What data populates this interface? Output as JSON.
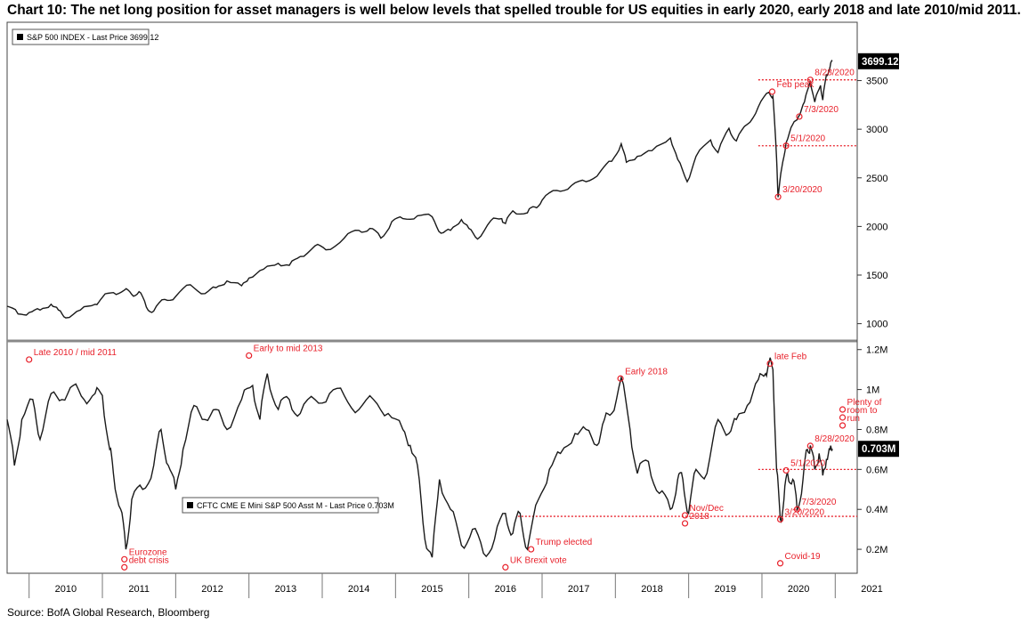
{
  "title": "Chart 10: The net long position for asset managers is well below levels that spelled trouble for US equities in early 2020, early 2018 and late 2010/mid 2011.",
  "source": "Source: BofA Global Research, Bloomberg",
  "colors": {
    "line": "#1a1a1a",
    "annotation": "#e8202a",
    "price_tag": "#000000"
  },
  "chart_data": [
    {
      "type": "line",
      "legend": "S&P 500 INDEX - Last Price 3699.12",
      "legend_position": "top-left",
      "last_price_label": "3699.12",
      "ylim": [
        850,
        4100
      ],
      "yticks": [
        1000,
        1500,
        2000,
        2500,
        3000,
        3500
      ],
      "ytick_labels": [
        "1000",
        "1500",
        "2000",
        "2500",
        "3000",
        "3500"
      ],
      "xlim": [
        2009.7,
        2021.3
      ],
      "series": [
        {
          "values": [
            [
              2009.7,
              1180
            ],
            [
              2009.85,
              1100
            ],
            [
              2010.0,
              1115
            ],
            [
              2010.15,
              1140
            ],
            [
              2010.3,
              1200
            ],
            [
              2010.4,
              1140
            ],
            [
              2010.5,
              1060
            ],
            [
              2010.7,
              1140
            ],
            [
              2010.9,
              1200
            ],
            [
              2011.0,
              1270
            ],
            [
              2011.15,
              1320
            ],
            [
              2011.3,
              1345
            ],
            [
              2011.4,
              1300
            ],
            [
              2011.5,
              1330
            ],
            [
              2011.6,
              1170
            ],
            [
              2011.7,
              1130
            ],
            [
              2011.85,
              1250
            ],
            [
              2012.0,
              1280
            ],
            [
              2012.2,
              1400
            ],
            [
              2012.4,
              1310
            ],
            [
              2012.55,
              1370
            ],
            [
              2012.7,
              1440
            ],
            [
              2012.9,
              1390
            ],
            [
              2013.0,
              1470
            ],
            [
              2013.2,
              1560
            ],
            [
              2013.4,
              1620
            ],
            [
              2013.55,
              1600
            ],
            [
              2013.7,
              1690
            ],
            [
              2013.9,
              1800
            ],
            [
              2014.05,
              1760
            ],
            [
              2014.3,
              1880
            ],
            [
              2014.5,
              1960
            ],
            [
              2014.65,
              1980
            ],
            [
              2014.8,
              1880
            ],
            [
              2014.95,
              2050
            ],
            [
              2015.1,
              2080
            ],
            [
              2015.3,
              2110
            ],
            [
              2015.5,
              2100
            ],
            [
              2015.62,
              1930
            ],
            [
              2015.75,
              1960
            ],
            [
              2015.9,
              2070
            ],
            [
              2016.0,
              1980
            ],
            [
              2016.12,
              1870
            ],
            [
              2016.3,
              2060
            ],
            [
              2016.45,
              2080
            ],
            [
              2016.5,
              2030
            ],
            [
              2016.6,
              2160
            ],
            [
              2016.8,
              2140
            ],
            [
              2016.9,
              2200
            ],
            [
              2017.0,
              2270
            ],
            [
              2017.2,
              2370
            ],
            [
              2017.4,
              2420
            ],
            [
              2017.6,
              2460
            ],
            [
              2017.8,
              2570
            ],
            [
              2017.95,
              2670
            ],
            [
              2018.08,
              2850
            ],
            [
              2018.15,
              2660
            ],
            [
              2018.3,
              2720
            ],
            [
              2018.5,
              2780
            ],
            [
              2018.75,
              2910
            ],
            [
              2018.85,
              2690
            ],
            [
              2018.98,
              2460
            ],
            [
              2019.1,
              2720
            ],
            [
              2019.3,
              2890
            ],
            [
              2019.4,
              2760
            ],
            [
              2019.55,
              3010
            ],
            [
              2019.65,
              2880
            ],
            [
              2019.8,
              3050
            ],
            [
              2019.95,
              3230
            ],
            [
              2020.1,
              3380
            ],
            [
              2020.15,
              3340
            ],
            [
              2020.2,
              2700
            ],
            [
              2020.22,
              2300
            ],
            [
              2020.27,
              2600
            ],
            [
              2020.33,
              2860
            ],
            [
              2020.42,
              3050
            ],
            [
              2020.5,
              3130
            ],
            [
              2020.58,
              3280
            ],
            [
              2020.66,
              3500
            ],
            [
              2020.72,
              3280
            ],
            [
              2020.8,
              3450
            ],
            [
              2020.83,
              3300
            ],
            [
              2020.88,
              3560
            ],
            [
              2020.93,
              3640
            ],
            [
              2020.96,
              3699
            ]
          ]
        }
      ],
      "annotations": [
        {
          "text": "Feb peak",
          "x": 2020.14,
          "y": 3386
        },
        {
          "text": "8/28/2020",
          "x": 2020.66,
          "y": 3508
        },
        {
          "text": "7/3/2020",
          "x": 2020.51,
          "y": 3130
        },
        {
          "text": "5/1/2020",
          "x": 2020.33,
          "y": 2830
        },
        {
          "text": "3/20/2020",
          "x": 2020.22,
          "y": 2304
        }
      ],
      "reference_lines": [
        3508,
        2830
      ]
    },
    {
      "type": "line",
      "legend": "CFTC CME E Mini S&P 500 Asst M - Last Price 0.703M",
      "legend_position": "center-left",
      "last_price_label": "0.703M",
      "ylim": [
        0.08,
        1.23
      ],
      "yticks": [
        0.2,
        0.4,
        0.6,
        0.8,
        1.0,
        1.2
      ],
      "ytick_labels": [
        "0.2M",
        "0.4M",
        "0.6M",
        "0.8M",
        "1M",
        "1.2M"
      ],
      "xlim": [
        2009.7,
        2021.3
      ],
      "x_tick_labels": [
        "2010",
        "2011",
        "2012",
        "2013",
        "2014",
        "2015",
        "2016",
        "2017",
        "2018",
        "2019",
        "2020",
        "2021"
      ],
      "series": [
        {
          "values": [
            [
              2009.7,
              0.85
            ],
            [
              2009.8,
              0.62
            ],
            [
              2009.9,
              0.85
            ],
            [
              2010.05,
              0.95
            ],
            [
              2010.15,
              0.75
            ],
            [
              2010.3,
              0.98
            ],
            [
              2010.45,
              0.95
            ],
            [
              2010.6,
              1.02
            ],
            [
              2010.75,
              0.95
            ],
            [
              2010.9,
              0.98
            ],
            [
              2011.0,
              0.97
            ],
            [
              2011.1,
              0.7
            ],
            [
              2011.15,
              0.58
            ],
            [
              2011.25,
              0.4
            ],
            [
              2011.32,
              0.2
            ],
            [
              2011.4,
              0.45
            ],
            [
              2011.55,
              0.5
            ],
            [
              2011.7,
              0.62
            ],
            [
              2011.8,
              0.8
            ],
            [
              2011.9,
              0.62
            ],
            [
              2012.0,
              0.5
            ],
            [
              2012.1,
              0.7
            ],
            [
              2012.25,
              0.92
            ],
            [
              2012.4,
              0.85
            ],
            [
              2012.55,
              0.9
            ],
            [
              2012.7,
              0.8
            ],
            [
              2012.9,
              0.95
            ],
            [
              2013.05,
              1.02
            ],
            [
              2013.15,
              0.85
            ],
            [
              2013.25,
              1.08
            ],
            [
              2013.4,
              0.9
            ],
            [
              2013.55,
              0.95
            ],
            [
              2013.7,
              0.88
            ],
            [
              2013.9,
              0.95
            ],
            [
              2014.1,
              0.98
            ],
            [
              2014.3,
              0.97
            ],
            [
              2014.5,
              0.9
            ],
            [
              2014.7,
              0.95
            ],
            [
              2014.9,
              0.88
            ],
            [
              2015.1,
              0.8
            ],
            [
              2015.2,
              0.72
            ],
            [
              2015.3,
              0.62
            ],
            [
              2015.4,
              0.25
            ],
            [
              2015.5,
              0.16
            ],
            [
              2015.6,
              0.55
            ],
            [
              2015.75,
              0.4
            ],
            [
              2015.9,
              0.22
            ],
            [
              2016.05,
              0.3
            ],
            [
              2016.2,
              0.18
            ],
            [
              2016.35,
              0.25
            ],
            [
              2016.5,
              0.38
            ],
            [
              2016.6,
              0.28
            ],
            [
              2016.7,
              0.38
            ],
            [
              2016.8,
              0.2
            ],
            [
              2016.95,
              0.45
            ],
            [
              2017.1,
              0.6
            ],
            [
              2017.25,
              0.68
            ],
            [
              2017.45,
              0.78
            ],
            [
              2017.6,
              0.8
            ],
            [
              2017.75,
              0.72
            ],
            [
              2017.85,
              0.85
            ],
            [
              2017.95,
              0.88
            ],
            [
              2018.08,
              1.06
            ],
            [
              2018.2,
              0.8
            ],
            [
              2018.3,
              0.58
            ],
            [
              2018.45,
              0.64
            ],
            [
              2018.6,
              0.48
            ],
            [
              2018.75,
              0.4
            ],
            [
              2018.85,
              0.55
            ],
            [
              2018.92,
              0.55
            ],
            [
              2019.0,
              0.38
            ],
            [
              2019.1,
              0.6
            ],
            [
              2019.25,
              0.58
            ],
            [
              2019.4,
              0.85
            ],
            [
              2019.55,
              0.78
            ],
            [
              2019.65,
              0.85
            ],
            [
              2019.8,
              0.92
            ],
            [
              2019.95,
              1.05
            ],
            [
              2020.05,
              1.08
            ],
            [
              2020.1,
              1.14
            ],
            [
              2020.15,
              1.1
            ],
            [
              2020.2,
              0.6
            ],
            [
              2020.25,
              0.35
            ],
            [
              2020.3,
              0.45
            ],
            [
              2020.35,
              0.58
            ],
            [
              2020.42,
              0.55
            ],
            [
              2020.48,
              0.4
            ],
            [
              2020.56,
              0.55
            ],
            [
              2020.62,
              0.7
            ],
            [
              2020.66,
              0.72
            ],
            [
              2020.72,
              0.6
            ],
            [
              2020.78,
              0.68
            ],
            [
              2020.83,
              0.57
            ],
            [
              2020.88,
              0.65
            ],
            [
              2020.93,
              0.7
            ],
            [
              2020.96,
              0.703
            ]
          ]
        }
      ],
      "annotations": [
        {
          "text": "Late 2010 / mid 2011",
          "x": 2010.0,
          "y": 1.15
        },
        {
          "text": "Early to mid 2013",
          "x": 2013.0,
          "y": 1.17
        },
        {
          "text": "Eurozone",
          "x": 2011.3,
          "y": 0.15
        },
        {
          "text": "debt crisis",
          "x": 2011.3,
          "y": 0.11
        },
        {
          "text": "UK Brexit vote",
          "x": 2016.5,
          "y": 0.11
        },
        {
          "text": "Trump elected",
          "x": 2016.85,
          "y": 0.2
        },
        {
          "text": "Early 2018",
          "x": 2018.07,
          "y": 1.055
        },
        {
          "text": "late Feb",
          "x": 2020.11,
          "y": 1.13
        },
        {
          "text": "Nov/Dec",
          "x": 2018.95,
          "y": 0.37
        },
        {
          "text": "2018",
          "x": 2018.95,
          "y": 0.33
        },
        {
          "text": "3/20/2020",
          "x": 2020.25,
          "y": 0.35
        },
        {
          "text": "Covid-19",
          "x": 2020.25,
          "y": 0.13
        },
        {
          "text": "5/1/2020",
          "x": 2020.33,
          "y": 0.595
        },
        {
          "text": "7/3/2020",
          "x": 2020.48,
          "y": 0.4
        },
        {
          "text": "8/28/2020",
          "x": 2020.66,
          "y": 0.718
        },
        {
          "text": "Plenty of",
          "x": 2021.1,
          "y": 0.9
        },
        {
          "text": "room to",
          "x": 2021.1,
          "y": 0.86
        },
        {
          "text": "run",
          "x": 2021.1,
          "y": 0.82
        }
      ],
      "reference_lines": [
        0.6,
        0.365
      ]
    }
  ]
}
